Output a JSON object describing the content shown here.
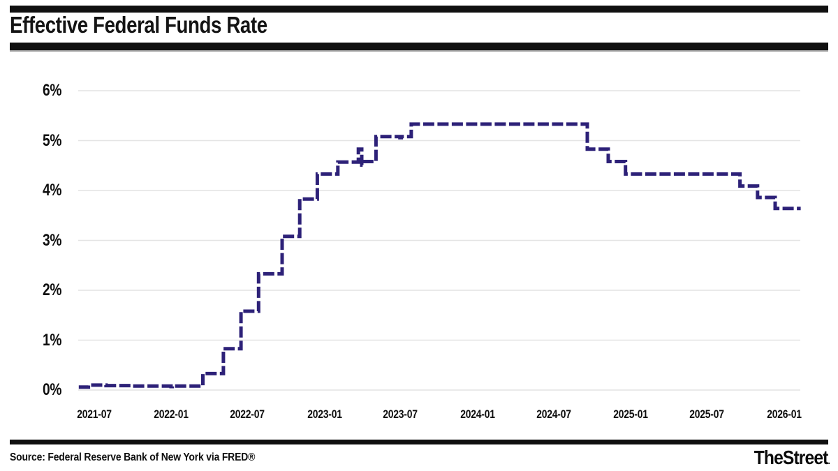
{
  "header": {
    "title": "Effective Federal Funds Rate"
  },
  "footer": {
    "source": "Source: Federal Reserve Bank of New York via FRED®",
    "brand": "TheStreet",
    "brand_suffix": "."
  },
  "colors": {
    "line": "#2d2178",
    "grid": "#e4e4e4",
    "rule": "#101010",
    "text": "#0f0f0f"
  },
  "chart_data": {
    "type": "line",
    "subtype": "step-after",
    "dashed": true,
    "title": "Effective Federal Funds Rate",
    "xlabel": "",
    "ylabel": "",
    "grid": "horizontal",
    "legend": "none",
    "ylim": [
      0,
      6
    ],
    "y_tick_labels": [
      "0%",
      "1%",
      "2%",
      "3%",
      "4%",
      "5%",
      "6%"
    ],
    "x_tick_labels": [
      "2021-07",
      "2022-01",
      "2022-07",
      "2023-01",
      "2023-07",
      "2024-01",
      "2024-07",
      "2025-01",
      "2025-07",
      "2026-01"
    ],
    "x_range": [
      "2021-05-25",
      "2026-02-10"
    ],
    "unit": "percent",
    "series": [
      {
        "name": "Effective Federal Funds Rate",
        "points": [
          [
            "2021-05-25",
            0.06
          ],
          [
            "2021-06-17",
            0.1
          ],
          [
            "2021-07-29",
            0.09
          ],
          [
            "2021-09-30",
            0.08
          ],
          [
            "2021-12-31",
            0.07
          ],
          [
            "2022-01-03",
            0.08
          ],
          [
            "2022-03-17",
            0.33
          ],
          [
            "2022-05-05",
            0.83
          ],
          [
            "2022-06-16",
            1.58
          ],
          [
            "2022-07-28",
            2.33
          ],
          [
            "2022-09-22",
            3.08
          ],
          [
            "2022-11-03",
            3.83
          ],
          [
            "2022-12-15",
            4.33
          ],
          [
            "2023-02-02",
            4.57
          ],
          [
            "2023-03-31",
            4.51
          ],
          [
            "2023-04-03",
            4.58
          ],
          [
            "2023-03-23",
            4.83
          ],
          [
            "2023-05-04",
            5.08
          ],
          [
            "2023-06-30",
            5.06
          ],
          [
            "2023-07-03",
            5.08
          ],
          [
            "2023-07-27",
            5.33
          ],
          [
            "2024-09-19",
            4.83
          ],
          [
            "2024-11-08",
            4.58
          ],
          [
            "2024-12-19",
            4.33
          ],
          [
            "2025-09-18",
            4.09
          ],
          [
            "2025-10-30",
            3.86
          ],
          [
            "2025-12-11",
            3.64
          ],
          [
            "2026-02-10",
            3.64
          ]
        ]
      }
    ]
  }
}
